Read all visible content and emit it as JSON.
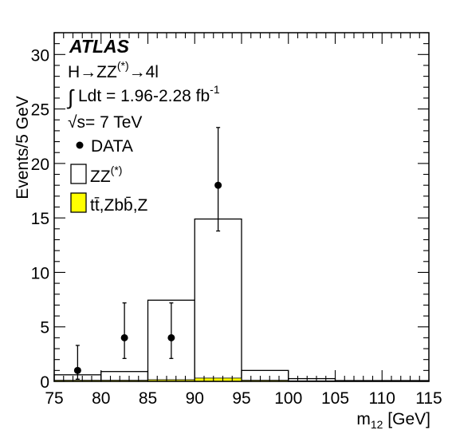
{
  "chart_data": {
    "type": "bar",
    "xlabel": "m₁₂ [GeV]",
    "ylabel": "Events/5 GeV",
    "xlim": [
      75,
      115
    ],
    "ylim": [
      0,
      32
    ],
    "x_ticks": [
      "75",
      "80",
      "85",
      "90",
      "95",
      "100",
      "105",
      "110",
      "115"
    ],
    "y_ticks": [
      "0",
      "5",
      "10",
      "15",
      "20",
      "25",
      "30"
    ],
    "grid": false,
    "bin_edges": [
      75,
      80,
      85,
      90,
      95,
      100,
      105,
      110,
      115
    ],
    "series": [
      {
        "name": "ZZ(*)",
        "type": "histogram",
        "values": [
          0.5,
          0.8,
          7.3,
          14.6,
          0.9,
          0.2,
          0.05,
          0.05
        ],
        "color": "#ffffff"
      },
      {
        "name": "tt̄,Zbb̄,Z",
        "type": "histogram",
        "values": [
          0.1,
          0.1,
          0.15,
          0.3,
          0.1,
          0.05,
          0.02,
          0.02
        ],
        "color": "#ffff00"
      },
      {
        "name": "DATA",
        "type": "scatter",
        "points": [
          {
            "x": 77.5,
            "y": 1,
            "err_low": 0.8,
            "err_high": 2.3
          },
          {
            "x": 82.5,
            "y": 4,
            "err_low": 1.9,
            "err_high": 3.2
          },
          {
            "x": 87.5,
            "y": 4,
            "err_low": 1.9,
            "err_high": 3.2
          },
          {
            "x": 92.5,
            "y": 18,
            "err_low": 4.2,
            "err_high": 5.3
          }
        ]
      }
    ],
    "annotations": {
      "experiment": "ATLAS",
      "process": "H→ZZ(*)→4l",
      "luminosity": "∫ Ldt = 1.96-2.28 fb⁻¹",
      "energy": "√s= 7 TeV"
    },
    "legend": {
      "position": "top-left",
      "entries": [
        "DATA",
        "ZZ(*)",
        "tt̄,Zbb̄,Z"
      ]
    }
  }
}
